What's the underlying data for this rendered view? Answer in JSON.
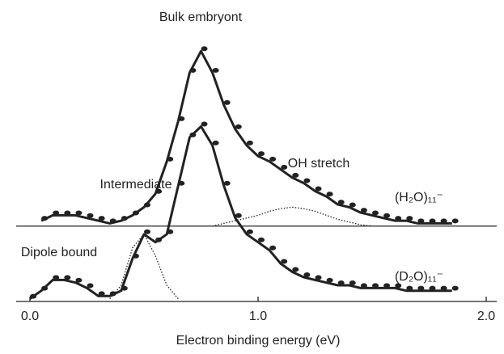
{
  "chart_data": {
    "type": "line",
    "xlabel": "Electron binding energy (eV)",
    "xlim": [
      0,
      2
    ],
    "xticks": [
      {
        "value": 0,
        "label": "0.0"
      },
      {
        "value": 1,
        "label": "1.0"
      },
      {
        "value": 2,
        "label": "2.0"
      }
    ],
    "ylim": [
      0,
      1
    ],
    "baselines": [
      0.28,
      0
    ],
    "annotations": [
      "Bulk embryont",
      "OH stretch",
      "Intermediate",
      "Dipole bound",
      "(H₂O)₁₁⁻",
      "(D₂O)₁₁⁻"
    ],
    "x": [
      0,
      0.05,
      0.1,
      0.15,
      0.2,
      0.25,
      0.3,
      0.35,
      0.4,
      0.45,
      0.5,
      0.55,
      0.6,
      0.65,
      0.7,
      0.75,
      0.8,
      0.85,
      0.9,
      0.95,
      1.0,
      1.05,
      1.1,
      1.15,
      1.2,
      1.25,
      1.3,
      1.35,
      1.4,
      1.45,
      1.5,
      1.55,
      1.6,
      1.65,
      1.7,
      1.75,
      1.8,
      1.85
    ],
    "series": [
      {
        "color": "#222222",
        "style": "solid",
        "markers": true,
        "values": [
          null,
          0.3,
          0.32,
          0.32,
          0.32,
          0.31,
          0.3,
          0.29,
          0.3,
          0.32,
          0.35,
          0.4,
          0.52,
          0.67,
          0.85,
          0.93,
          0.85,
          0.73,
          0.64,
          0.58,
          0.54,
          0.52,
          0.49,
          0.46,
          0.44,
          0.41,
          0.39,
          0.36,
          0.35,
          0.33,
          0.32,
          0.31,
          0.3,
          0.3,
          0.29,
          0.29,
          0.29,
          0.29
        ]
      },
      {
        "color": "#222222",
        "style": "solid",
        "markers": true,
        "values": [
          0.01,
          0.04,
          0.08,
          0.08,
          0.07,
          0.05,
          0.02,
          0.02,
          0.04,
          0.16,
          0.25,
          0.22,
          0.25,
          0.43,
          0.61,
          0.65,
          0.58,
          0.43,
          0.31,
          0.25,
          0.22,
          0.19,
          0.14,
          0.11,
          0.09,
          0.08,
          0.07,
          0.06,
          0.06,
          0.05,
          0.05,
          0.05,
          0.05,
          0.04,
          0.04,
          0.04,
          0.04,
          0.04
        ]
      },
      {
        "color": "#222222",
        "style": "dotted",
        "markers": false,
        "values": [
          null,
          null,
          null,
          null,
          null,
          null,
          null,
          null,
          null,
          null,
          null,
          null,
          null,
          null,
          null,
          null,
          0.28,
          0.29,
          0.3,
          0.31,
          0.32,
          0.335,
          0.345,
          0.35,
          0.345,
          0.335,
          0.32,
          0.305,
          0.295,
          0.285,
          0.28,
          null,
          null,
          null,
          null,
          null,
          null,
          null
        ]
      },
      {
        "color": "#222222",
        "style": "dotted",
        "markers": false,
        "values": [
          null,
          null,
          null,
          null,
          null,
          null,
          null,
          0.01,
          0.06,
          0.2,
          0.25,
          0.17,
          0.06,
          0.01,
          null,
          null,
          null,
          null,
          null,
          null,
          null,
          null,
          null,
          null,
          null,
          null,
          null,
          null,
          null,
          null,
          null,
          null,
          null,
          null,
          null,
          null,
          null,
          null
        ]
      }
    ]
  }
}
